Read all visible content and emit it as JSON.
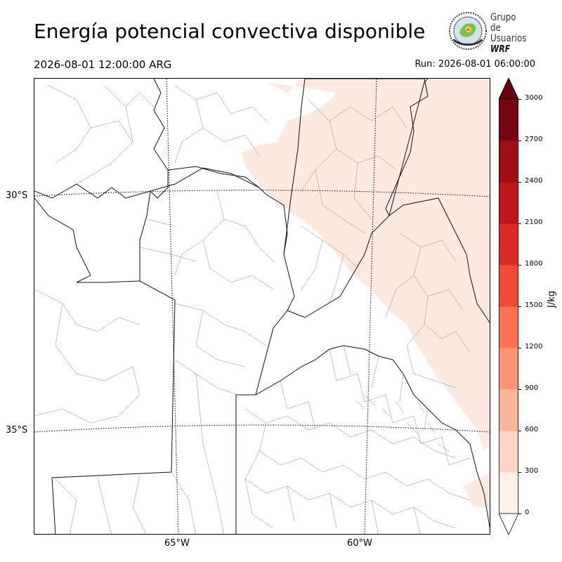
{
  "title": "Energía potencial convectiva disponible",
  "valid_time": "2026-08-01 12:00:00 ARG",
  "run_time": "Run: 2026-08-01 06:00:00",
  "logo": {
    "line1": "Grupo de",
    "line2": "Usuarios",
    "line3": "WRF"
  },
  "map": {
    "lat_labels": [
      "30°S",
      "35°S"
    ],
    "lon_labels": [
      "65°W",
      "60°W"
    ],
    "field_color": "#fee9e1",
    "field_level": "0-300 J/kg"
  },
  "colorbar": {
    "unit": "J/kg",
    "ticks": [
      "0",
      "300",
      "600",
      "900",
      "1200",
      "1500",
      "1800",
      "2100",
      "2400",
      "2700",
      "3000"
    ],
    "colors": [
      "#fff0ea",
      "#fdd5c4",
      "#fcb69c",
      "#fc9475",
      "#fb7353",
      "#f24a36",
      "#dd2a26",
      "#c1161c",
      "#9f0d16",
      "#790510"
    ],
    "over_color": "#67000d",
    "under_color": "#ffffff"
  }
}
